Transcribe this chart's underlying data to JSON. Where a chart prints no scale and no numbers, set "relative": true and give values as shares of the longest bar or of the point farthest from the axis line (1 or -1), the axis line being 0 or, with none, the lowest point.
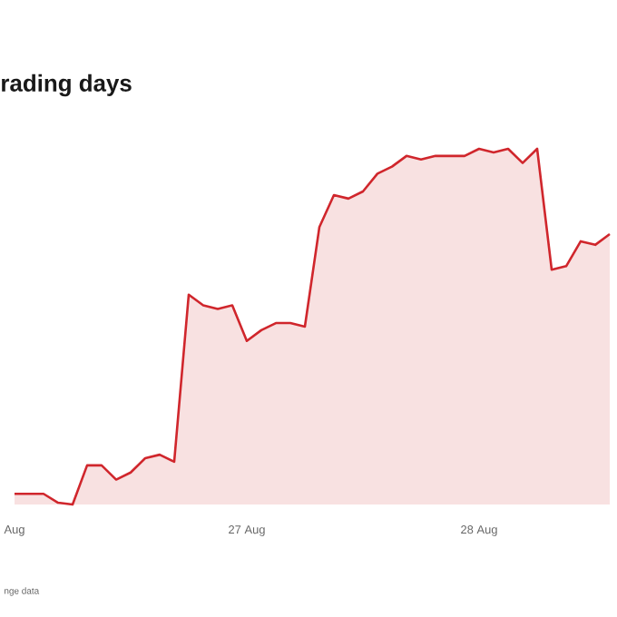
{
  "chart_data": {
    "type": "area",
    "title": "rading days",
    "annotations": [
      "nge data"
    ],
    "relative": true,
    "color": "#d0262c",
    "categories": [
      "Aug",
      null,
      null,
      null,
      null,
      null,
      null,
      null,
      null,
      null,
      null,
      null,
      null,
      null,
      null,
      null,
      "27 Aug",
      null,
      null,
      null,
      null,
      null,
      null,
      null,
      null,
      null,
      null,
      null,
      null,
      null,
      null,
      null,
      "28 Aug",
      null,
      null,
      null,
      null,
      null,
      null,
      null,
      null,
      null
    ],
    "values": [
      0.03,
      0.03,
      0.03,
      0.005,
      0,
      0.11,
      0.11,
      0.07,
      0.09,
      0.13,
      0.14,
      0.12,
      0.59,
      0.56,
      0.55,
      0.56,
      0.46,
      0.49,
      0.51,
      0.51,
      0.5,
      0.78,
      0.87,
      0.86,
      0.88,
      0.93,
      0.95,
      0.98,
      0.97,
      0.98,
      0.98,
      0.98,
      1,
      0.99,
      1,
      0.96,
      1,
      0.66,
      0.67,
      0.74,
      0.73,
      0.76
    ]
  }
}
